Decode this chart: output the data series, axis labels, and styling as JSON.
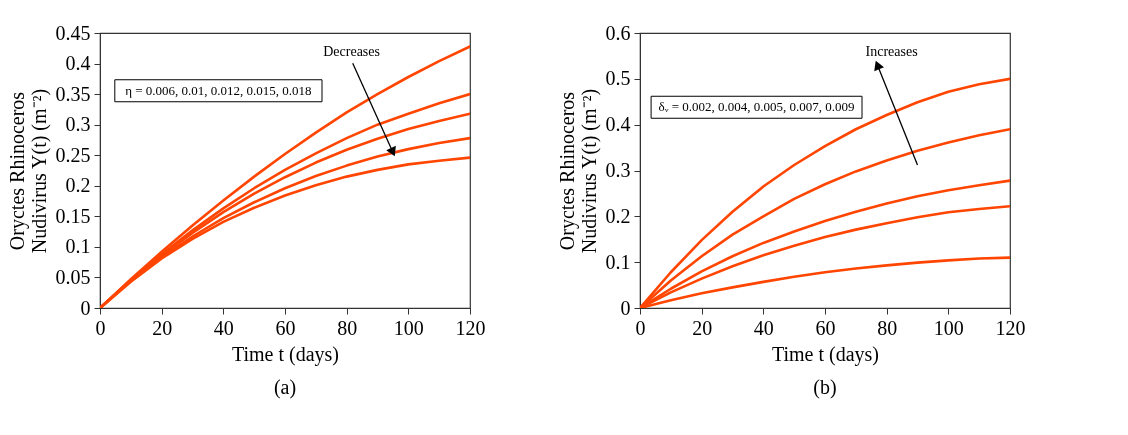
{
  "chart_data": [
    {
      "type": "line",
      "title": "(a)",
      "xlabel": "Time t (days)",
      "ylabel": "Oryctes Rhinoceros Nudivirus Y(t) (m⁻²)",
      "x": [
        0,
        10,
        20,
        30,
        40,
        50,
        60,
        70,
        80,
        90,
        100,
        110,
        120
      ],
      "series": [
        {
          "color": "#ff4500",
          "values": [
            0,
            0.047,
            0.092,
            0.135,
            0.176,
            0.215,
            0.252,
            0.287,
            0.32,
            0.35,
            0.378,
            0.404,
            0.428
          ]
        },
        {
          "color": "#ff4500",
          "values": [
            0,
            0.045,
            0.088,
            0.127,
            0.163,
            0.196,
            0.226,
            0.253,
            0.278,
            0.3,
            0.318,
            0.335,
            0.35
          ]
        },
        {
          "color": "#ff4500",
          "values": [
            0,
            0.045,
            0.086,
            0.123,
            0.157,
            0.187,
            0.214,
            0.238,
            0.259,
            0.277,
            0.293,
            0.306,
            0.318
          ]
        },
        {
          "color": "#ff4500",
          "values": [
            0,
            0.044,
            0.083,
            0.117,
            0.147,
            0.173,
            0.196,
            0.216,
            0.233,
            0.248,
            0.26,
            0.27,
            0.278
          ]
        },
        {
          "color": "#ff4500",
          "values": [
            0,
            0.043,
            0.081,
            0.113,
            0.141,
            0.164,
            0.184,
            0.201,
            0.215,
            0.226,
            0.235,
            0.241,
            0.246
          ]
        }
      ],
      "xlim": [
        0,
        120
      ],
      "xticks": [
        0,
        20,
        40,
        60,
        80,
        100,
        120
      ],
      "ylim": [
        0,
        0.45
      ],
      "yticks": [
        0,
        0.05,
        0.1,
        0.15,
        0.2,
        0.25,
        0.3,
        0.35,
        0.4,
        0.45
      ],
      "annotations": [
        "η = 0.006, 0.01, 0.012, 0.015, 0.018",
        {
          "text": "Decreases",
          "x": 95,
          "y": 0.255
        }
      ]
    },
    {
      "type": "line",
      "title": "(b)",
      "xlabel": "Time t (days)",
      "ylabel": "Oryctes Rhinoceros Nudivirus Y(t) (m⁻²)",
      "x": [
        0,
        10,
        20,
        30,
        40,
        50,
        60,
        70,
        80,
        90,
        100,
        110,
        120
      ],
      "series": [
        {
          "color": "#ff4500",
          "values": [
            0,
            0.078,
            0.148,
            0.21,
            0.265,
            0.312,
            0.353,
            0.39,
            0.421,
            0.449,
            0.472,
            0.488,
            0.5
          ]
        },
        {
          "color": "#ff4500",
          "values": [
            0,
            0.06,
            0.113,
            0.16,
            0.2,
            0.238,
            0.27,
            0.298,
            0.322,
            0.343,
            0.361,
            0.377,
            0.39
          ]
        },
        {
          "color": "#ff4500",
          "values": [
            0,
            0.042,
            0.08,
            0.113,
            0.142,
            0.167,
            0.19,
            0.21,
            0.228,
            0.244,
            0.257,
            0.268,
            0.278
          ]
        },
        {
          "color": "#ff4500",
          "values": [
            0,
            0.034,
            0.064,
            0.091,
            0.115,
            0.136,
            0.155,
            0.171,
            0.185,
            0.198,
            0.209,
            0.216,
            0.222
          ]
        },
        {
          "color": "#ff4500",
          "values": [
            0,
            0.017,
            0.032,
            0.045,
            0.057,
            0.068,
            0.078,
            0.086,
            0.093,
            0.099,
            0.104,
            0.108,
            0.11
          ]
        }
      ],
      "xlim": [
        0,
        120
      ],
      "xticks": [
        0,
        20,
        40,
        60,
        80,
        100,
        120
      ],
      "ylim": [
        0,
        0.6
      ],
      "yticks": [
        0,
        0.1,
        0.2,
        0.3,
        0.4,
        0.5,
        0.6
      ],
      "annotations": [
        "δᵥ = 0.002, 0.004, 0.005, 0.007, 0.009",
        {
          "text": "Increases",
          "x": 77,
          "y": 0.53
        }
      ]
    }
  ]
}
